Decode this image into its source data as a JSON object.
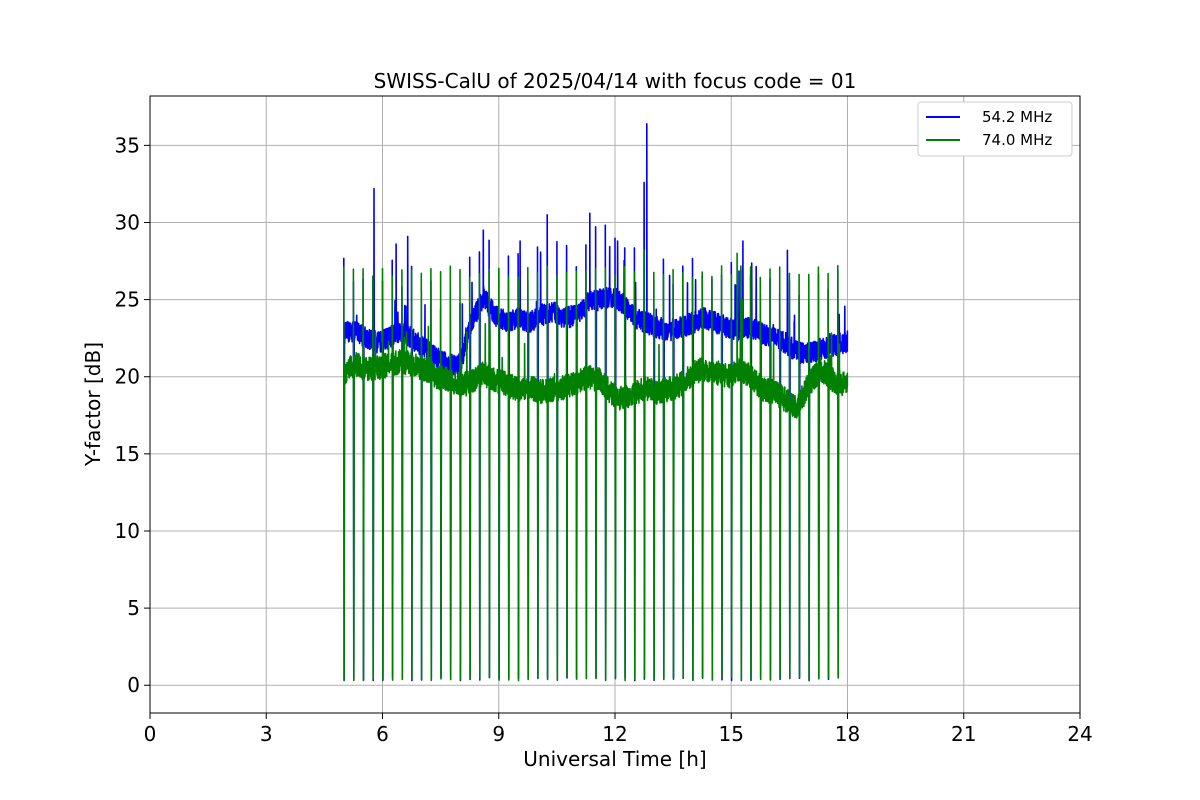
{
  "chart_data": {
    "type": "line",
    "title": "SWISS-CalU of 2025/04/14 with focus code = 01",
    "xlabel": "Universal Time [h]",
    "ylabel": "Y-factor [dB]",
    "xlim": [
      0,
      24
    ],
    "ylim": [
      -1.8,
      38.2
    ],
    "x_ticks": [
      0,
      3,
      6,
      9,
      12,
      15,
      18,
      21,
      24
    ],
    "y_ticks": [
      0,
      5,
      10,
      15,
      20,
      25,
      30,
      35
    ],
    "grid": true,
    "legend_position": "top-right",
    "calibration_dip_times": [
      5.0,
      5.25,
      5.5,
      5.75,
      6.0,
      6.25,
      6.5,
      6.75,
      7.0,
      7.25,
      7.5,
      7.75,
      8.0,
      8.25,
      8.5,
      8.75,
      9.0,
      9.25,
      9.5,
      9.75,
      10.0,
      10.25,
      10.5,
      10.75,
      11.0,
      11.25,
      11.5,
      11.75,
      12.0,
      12.25,
      12.5,
      12.75,
      13.0,
      13.25,
      13.5,
      13.75,
      14.0,
      14.25,
      14.5,
      14.75,
      15.0,
      15.25,
      15.5,
      15.75,
      16.0,
      16.25,
      16.5,
      16.75,
      17.0,
      17.25,
      17.5,
      17.75
    ],
    "dip_value": 0.3,
    "series": [
      {
        "name": "54.2 MHz",
        "color": "#0000ff",
        "x": [
          5.0,
          5.3,
          5.6,
          5.9,
          6.2,
          6.5,
          6.8,
          7.1,
          7.4,
          7.7,
          8.0,
          8.3,
          8.6,
          8.9,
          9.2,
          9.5,
          9.8,
          10.1,
          10.4,
          10.7,
          11.0,
          11.3,
          11.6,
          11.9,
          12.2,
          12.5,
          12.8,
          13.1,
          13.4,
          13.7,
          14.0,
          14.3,
          14.6,
          14.9,
          15.2,
          15.5,
          15.8,
          16.1,
          16.4,
          16.7,
          17.0,
          17.3,
          17.6,
          17.9,
          18.0
        ],
        "y": [
          22.8,
          23.0,
          22.5,
          22.2,
          22.6,
          23.0,
          22.4,
          21.8,
          21.2,
          20.8,
          20.8,
          23.5,
          25.2,
          24.0,
          23.6,
          23.8,
          23.5,
          24.0,
          24.2,
          23.8,
          24.0,
          24.8,
          25.0,
          25.2,
          24.8,
          23.8,
          23.5,
          23.2,
          23.0,
          23.2,
          23.5,
          23.8,
          23.5,
          23.2,
          23.0,
          23.2,
          22.8,
          22.5,
          22.2,
          21.6,
          21.5,
          21.8,
          22.0,
          22.2,
          22.3
        ],
        "spikes": [
          [
            5.78,
            32.2
          ],
          [
            6.35,
            28.6
          ],
          [
            6.65,
            29.1
          ],
          [
            8.6,
            29.5
          ],
          [
            9.55,
            28.8
          ],
          [
            10.25,
            30.5
          ],
          [
            11.35,
            30.6
          ],
          [
            12.75,
            32.6
          ],
          [
            12.82,
            36.4
          ],
          [
            15.3,
            28.8
          ],
          [
            16.45,
            28.2
          ]
        ]
      },
      {
        "name": "74.0 MHz",
        "color": "#008000",
        "x": [
          5.0,
          5.3,
          5.6,
          5.9,
          6.2,
          6.5,
          6.8,
          7.1,
          7.4,
          7.7,
          8.0,
          8.3,
          8.6,
          8.9,
          9.2,
          9.5,
          9.8,
          10.1,
          10.4,
          10.7,
          11.0,
          11.3,
          11.6,
          11.9,
          12.2,
          12.5,
          12.8,
          13.1,
          13.4,
          13.7,
          14.0,
          14.3,
          14.6,
          14.9,
          15.2,
          15.5,
          15.8,
          16.1,
          16.4,
          16.7,
          17.0,
          17.3,
          17.6,
          17.9,
          18.0
        ],
        "y": [
          20.2,
          20.8,
          20.5,
          20.6,
          20.8,
          21.0,
          20.8,
          20.5,
          20.0,
          19.8,
          19.5,
          19.6,
          20.2,
          19.8,
          19.5,
          19.2,
          19.3,
          19.0,
          19.2,
          19.3,
          19.6,
          20.0,
          19.8,
          19.0,
          18.5,
          19.0,
          19.2,
          19.0,
          19.2,
          19.5,
          20.2,
          20.5,
          20.3,
          20.0,
          20.5,
          20.0,
          19.2,
          19.0,
          18.5,
          18.0,
          19.5,
          20.5,
          19.8,
          19.5,
          19.8
        ],
        "spike_value": 26.8,
        "spikes": [
          [
            5.5,
            27.0
          ],
          [
            15.15,
            28.0
          ],
          [
            12.75,
            28.2
          ]
        ]
      }
    ]
  }
}
